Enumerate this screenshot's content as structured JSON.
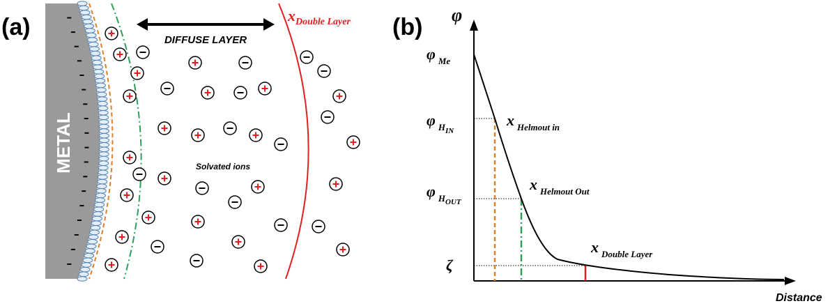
{
  "panel_a": {
    "label": "(a)",
    "metal": "METAL",
    "diffuse_layer": "DIFFUSE LAYER",
    "solvated_ions": "Solvated ions",
    "double_layer": {
      "symbol": "x",
      "subscript": "Double Layer"
    }
  },
  "panel_b": {
    "label": "(b)",
    "y_axis": "φ",
    "x_axis": "Distance",
    "levels": [
      {
        "symbol": "φ",
        "subscript": "Me"
      },
      {
        "symbol": "φ",
        "subscript": "H",
        "subsubscript": "IN"
      },
      {
        "symbol": "φ",
        "subscript": "H",
        "subsubscript": "OUT"
      },
      {
        "symbol": "ζ"
      }
    ],
    "positions": [
      {
        "symbol": "x",
        "subscript": "Helmout in"
      },
      {
        "symbol": "x",
        "subscript": "Helmout Out"
      },
      {
        "symbol": "x",
        "subscript": "Double Layer"
      }
    ]
  }
}
